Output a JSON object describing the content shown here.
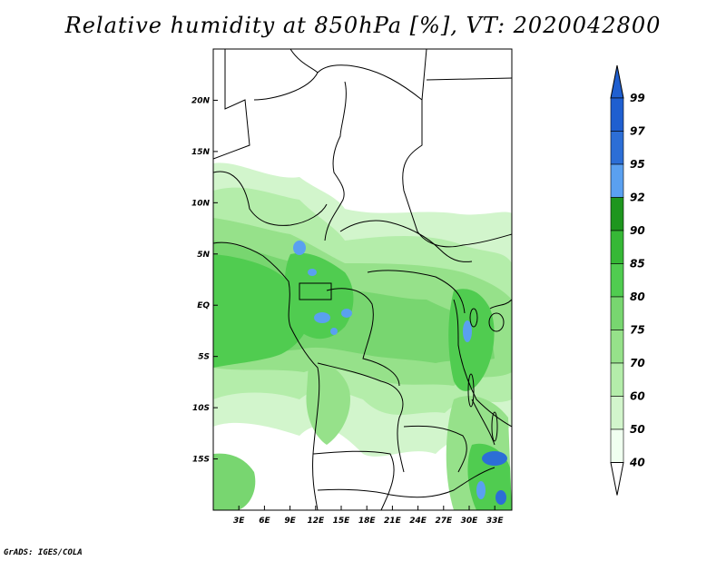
{
  "title": "Relative humidity at 850hPa [%], VT: 2020042800",
  "credit": "GrADS: IGES/COLA",
  "map": {
    "projection": "lat-lon",
    "lon_range": [
      0,
      35
    ],
    "lat_range": [
      -20,
      25
    ],
    "lon_ticks": [
      "3E",
      "6E",
      "9E",
      "12E",
      "15E",
      "18E",
      "21E",
      "24E",
      "27E",
      "30E",
      "33E"
    ],
    "lat_ticks": [
      "20N",
      "15N",
      "10N",
      "5N",
      "EQ",
      "5S",
      "10S",
      "15S"
    ],
    "fill_palette": [
      "#f0fff0",
      "#d2f5cc",
      "#b4edaa",
      "#96e18a",
      "#78d670",
      "#50cc50",
      "#36b836",
      "#1e961e",
      "#5aa0f0",
      "#2c6ed6"
    ],
    "boundary_color": "#000000"
  },
  "colorbar": {
    "levels": [
      "99",
      "97",
      "95",
      "92",
      "90",
      "85",
      "80",
      "75",
      "70",
      "60",
      "50",
      "40"
    ],
    "colors": [
      "#1f5fd0",
      "#2c6ed6",
      "#5aa0f0",
      "#1e961e",
      "#36b836",
      "#50cc50",
      "#78d670",
      "#96e18a",
      "#b4edaa",
      "#d2f5cc",
      "#f0fff0"
    ],
    "top_color": "#1f5fd0",
    "bottom_color": "#ffffff"
  }
}
